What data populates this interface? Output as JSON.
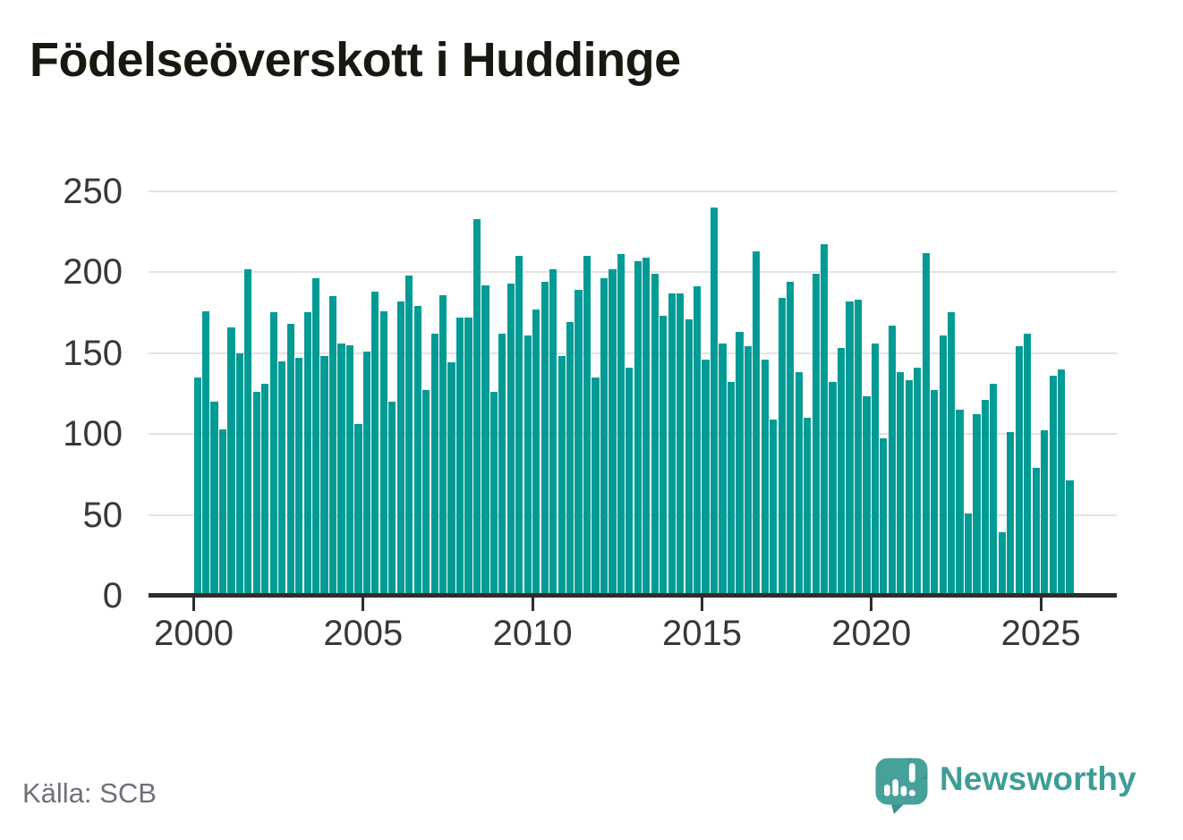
{
  "title": "Födelseöverskott i Huddinge",
  "source_label": "Källa: SCB",
  "branding": {
    "wordmark": "Newsworthy",
    "icon": "newsworthy-speech-bubble-bar-chart-icon",
    "wordmark_color": "#3d9d96",
    "icon_color": "#46a19a",
    "icon_fold_color": "#38928b",
    "icon_glyph_color": "#ffffff"
  },
  "colors": {
    "bar": "#009b94",
    "title_text": "#17180f",
    "axis_line": "#2d2d2d",
    "gridline": "#e2e2e2",
    "tick_label": "#383838",
    "source_text": "#6d7178",
    "background": "#ffffff"
  },
  "chart_data": {
    "type": "bar",
    "title": "Födelseöverskott i Huddinge",
    "frequency": "quarterly",
    "x_range_quarters": [
      "2000 Q1",
      "2025 Q4"
    ],
    "ylim": [
      0,
      250
    ],
    "y_ticks": [
      0,
      50,
      100,
      150,
      200,
      250
    ],
    "x_tick_labels": [
      "2000",
      "2005",
      "2010",
      "2015",
      "2020",
      "2025"
    ],
    "x_tick_every_quarters": 20,
    "grid": "horizontal",
    "legend": "none",
    "bar_color": "#009b94",
    "series": [
      {
        "name": "Födelseöverskott",
        "by_year": [
          {
            "year": 2000,
            "values": [
              134,
              175,
              119,
              102
            ]
          },
          {
            "year": 2001,
            "values": [
              165,
              149,
              201,
              125
            ]
          },
          {
            "year": 2002,
            "values": [
              130,
              174,
              144,
              167
            ]
          },
          {
            "year": 2003,
            "values": [
              146,
              174,
              195,
              147
            ]
          },
          {
            "year": 2004,
            "values": [
              184,
              155,
              154,
              105
            ]
          },
          {
            "year": 2005,
            "values": [
              150,
              187,
              175,
              119
            ]
          },
          {
            "year": 2006,
            "values": [
              181,
              197,
              178,
              126
            ]
          },
          {
            "year": 2007,
            "values": [
              161,
              185,
              143,
              171
            ]
          },
          {
            "year": 2008,
            "values": [
              171,
              232,
              191,
              125
            ]
          },
          {
            "year": 2009,
            "values": [
              161,
              192,
              209,
              160
            ]
          },
          {
            "year": 2010,
            "values": [
              176,
              193,
              201,
              147
            ]
          },
          {
            "year": 2011,
            "values": [
              168,
              188,
              209,
              134
            ]
          },
          {
            "year": 2012,
            "values": [
              195,
              201,
              210,
              140
            ]
          },
          {
            "year": 2013,
            "values": [
              206,
              208,
              198,
              172
            ]
          },
          {
            "year": 2014,
            "values": [
              186,
              186,
              170,
              190
            ]
          },
          {
            "year": 2015,
            "values": [
              145,
              239,
              155,
              131
            ]
          },
          {
            "year": 2016,
            "values": [
              162,
              153,
              212,
              145
            ]
          },
          {
            "year": 2017,
            "values": [
              108,
              183,
              193,
              137
            ]
          },
          {
            "year": 2018,
            "values": [
              109,
              198,
              216,
              131
            ]
          },
          {
            "year": 2019,
            "values": [
              152,
              181,
              182,
              122
            ]
          },
          {
            "year": 2020,
            "values": [
              155,
              96,
              166,
              137
            ]
          },
          {
            "year": 2021,
            "values": [
              132,
              140,
              211,
              126
            ]
          },
          {
            "year": 2022,
            "values": [
              160,
              174,
              114,
              50
            ]
          },
          {
            "year": 2023,
            "values": [
              111,
              120,
              130,
              38
            ]
          },
          {
            "year": 2024,
            "values": [
              100,
              153,
              161,
              78
            ]
          },
          {
            "year": 2025,
            "values": [
              101,
              135,
              139,
              70
            ]
          }
        ]
      }
    ]
  }
}
